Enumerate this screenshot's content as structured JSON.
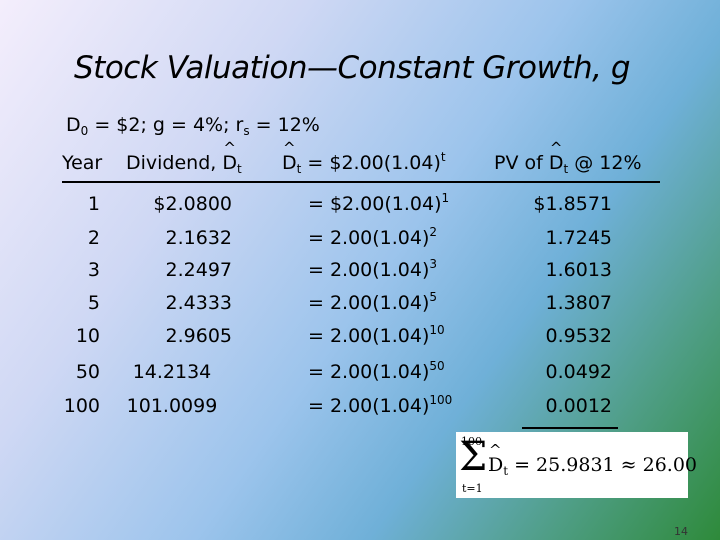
{
  "title": "Stock Valuation—Constant Growth, g",
  "params": {
    "d_main": "D",
    "d_sub": "0",
    "rest1": " = $2; g = 4%; r",
    "r_sub": "s",
    "rest2": " = 12%"
  },
  "headers": {
    "year": "Year",
    "dividend_prefix": "Dividend, ",
    "dhat": "D",
    "t_sub": "t",
    "formula_suffix": " = $2.00(1.04)",
    "formula_sup": "t",
    "pv_prefix": "PV of  ",
    "pv_suffix": " @ 12%"
  },
  "rows": [
    {
      "year": "1",
      "dividend": "$2.0800",
      "eq": "= $2.00(1.04)",
      "exp": "1",
      "pv": "$1.8571"
    },
    {
      "year": "2",
      "dividend": "2.1632",
      "eq": "=   2.00(1.04)",
      "exp": "2",
      "pv": "1.7245"
    },
    {
      "year": "3",
      "dividend": "2.2497",
      "eq": "=   2.00(1.04)",
      "exp": "3",
      "pv": "1.6013"
    },
    {
      "year": "5",
      "dividend": "2.4333",
      "eq": "=   2.00(1.04)",
      "exp": "5",
      "pv": "1.3807"
    },
    {
      "year": "10",
      "dividend": "2.9605",
      "eq": "=   2.00(1.04)",
      "exp": "10",
      "pv": "0.9532"
    },
    {
      "year": "50",
      "dividend": "14.2134",
      "eq": "=   2.00(1.04)",
      "exp": "50",
      "pv": "0.0492"
    },
    {
      "year": "100",
      "dividend": "101.0099",
      "eq": "=   2.00(1.04)",
      "exp": "100",
      "pv": "0.0012"
    }
  ],
  "sum": {
    "upper": "100",
    "lower": "t=1",
    "symbol": "Σ",
    "d": "D",
    "t": "t",
    "result": " = 25.9831 ≈ 26.00"
  },
  "page_number": "14"
}
